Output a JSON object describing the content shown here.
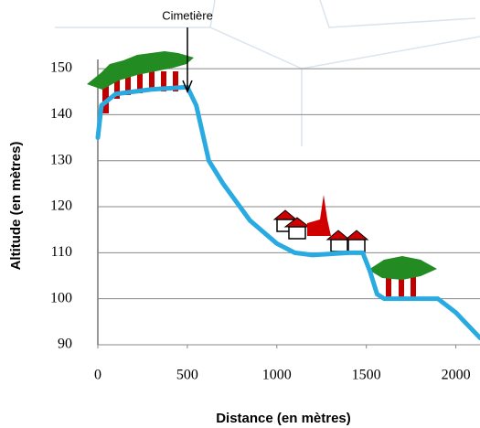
{
  "chart_data": {
    "type": "line",
    "annotation": "Cimetière",
    "x_label": "Distance (en mètres)",
    "y_label": "Altitude (en mètres)",
    "x": [
      0,
      20,
      100,
      300,
      500,
      550,
      620,
      700,
      850,
      1000,
      1100,
      1200,
      1400,
      1480,
      1520,
      1560,
      1600,
      1800,
      1900,
      2000,
      2135
    ],
    "series": [
      {
        "color": "#29abe2",
        "values": [
          135,
          142,
          144.5,
          145.5,
          146,
          142,
          130,
          125,
          117,
          112,
          110,
          109.5,
          110,
          110,
          106,
          101,
          100,
          100,
          100,
          97,
          91.5
        ]
      }
    ],
    "xlim": [
      0,
      2135
    ],
    "ylim": [
      90,
      152
    ],
    "xticks": [
      0,
      500,
      1000,
      1500,
      2000
    ],
    "yticks": [
      90,
      100,
      110,
      120,
      130,
      140,
      150
    ],
    "grid": true
  }
}
